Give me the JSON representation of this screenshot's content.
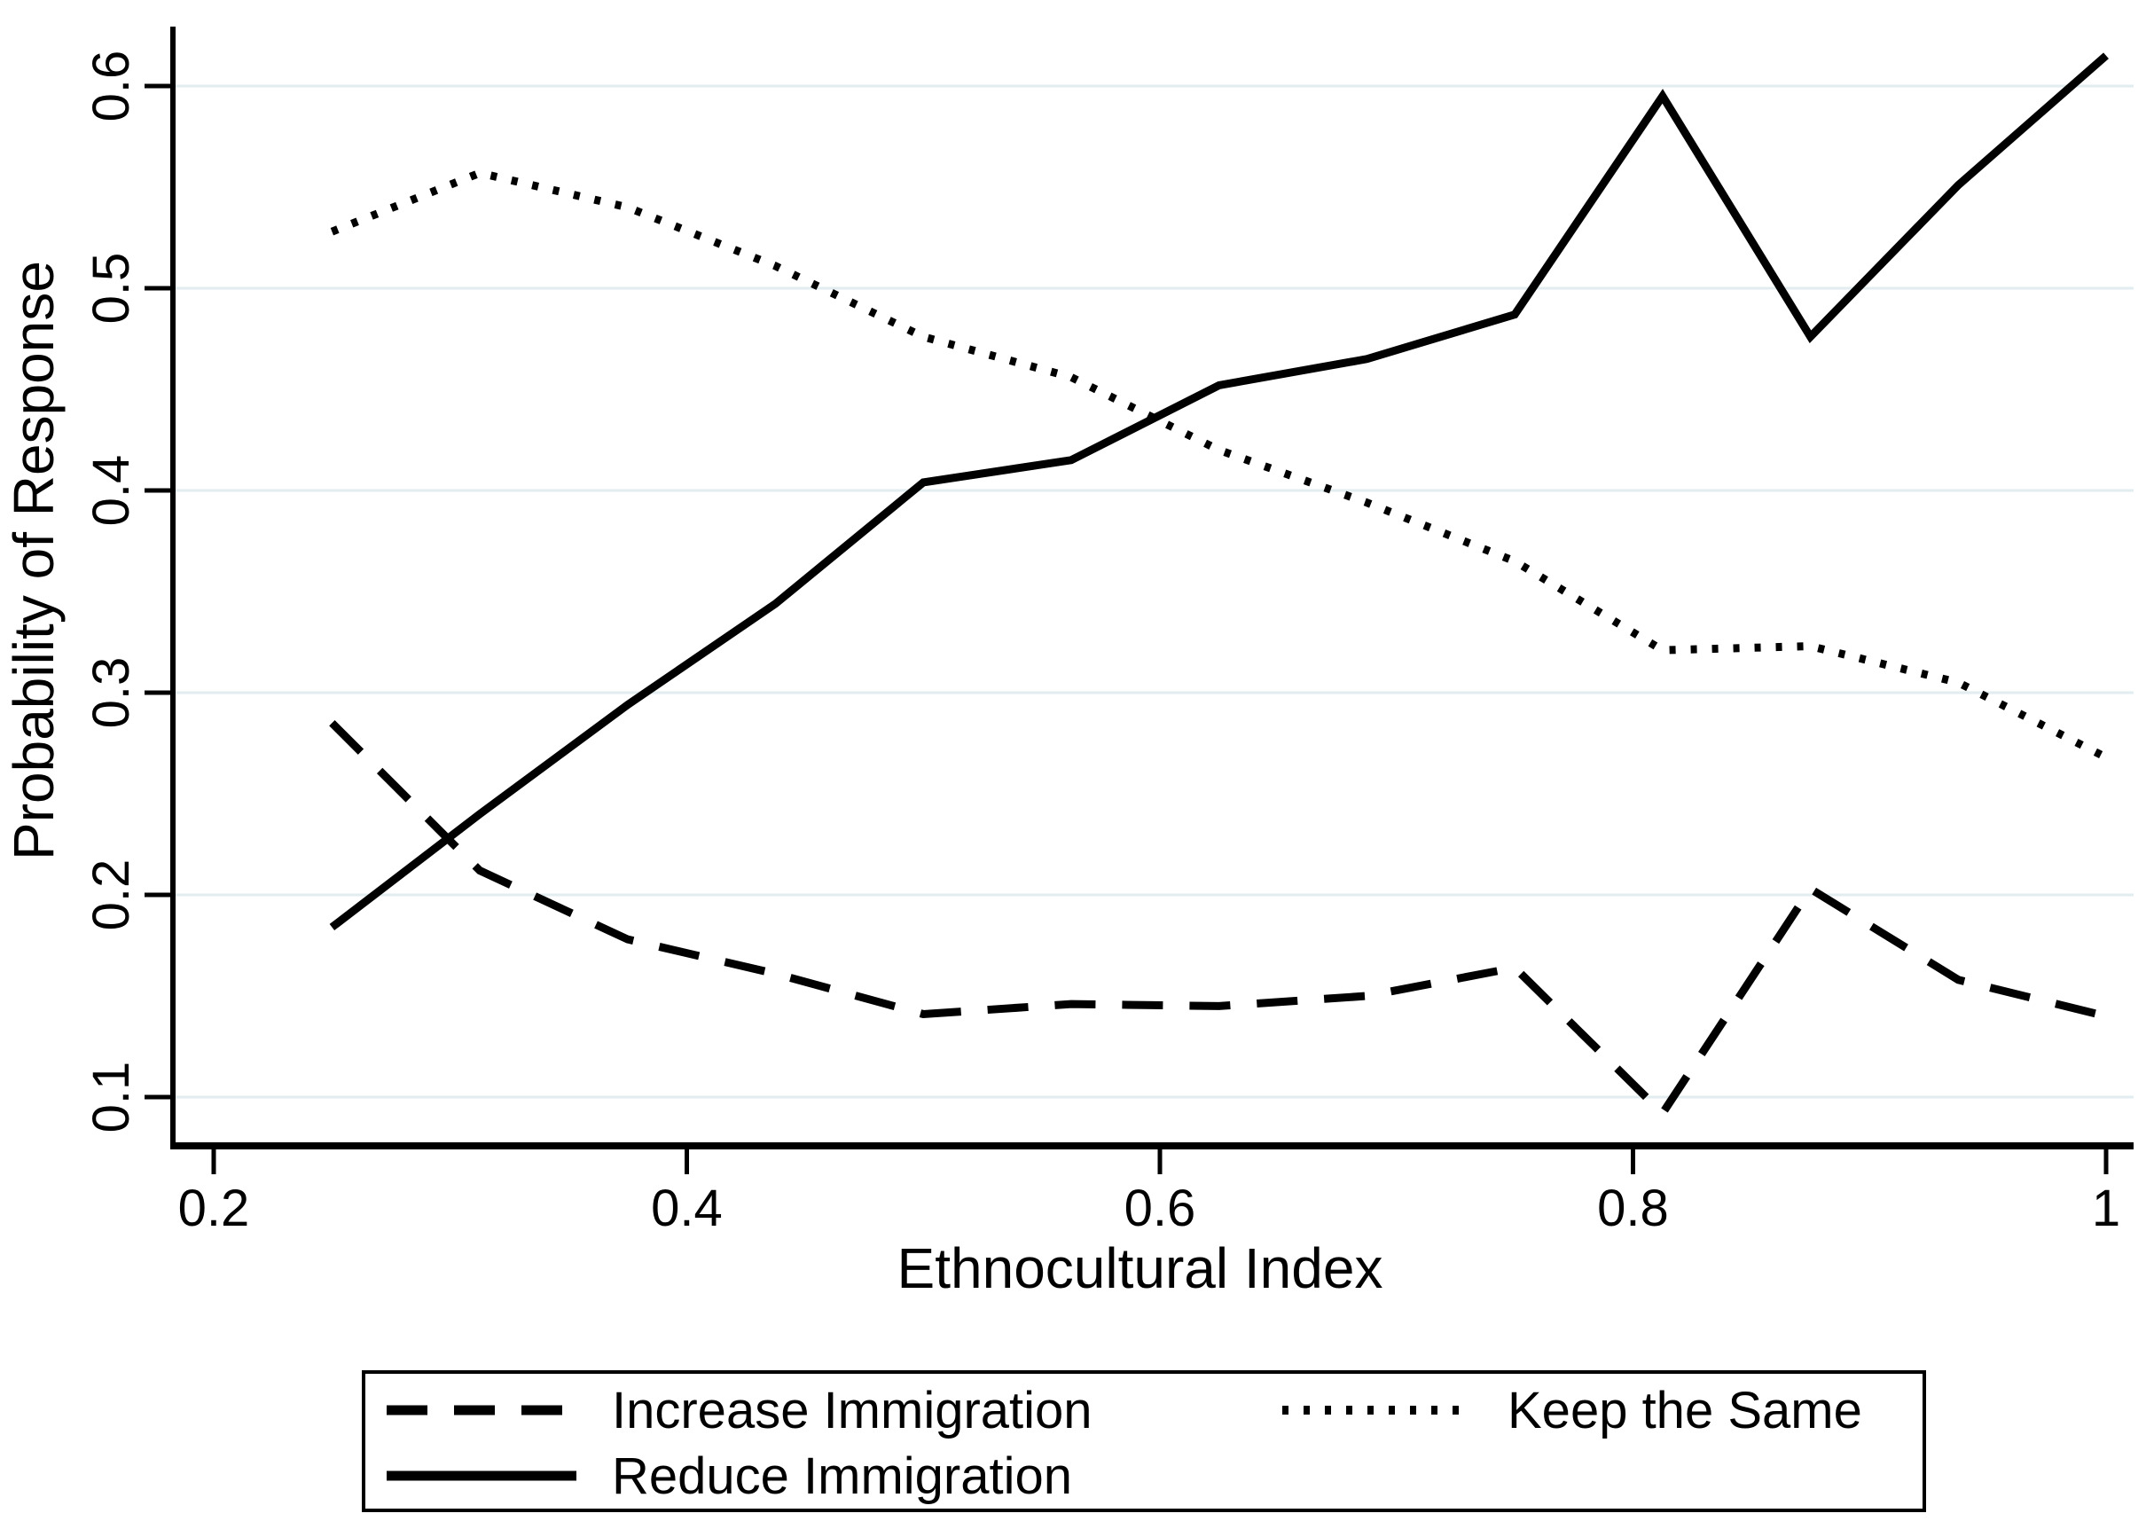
{
  "chart_data": {
    "type": "line",
    "title": "",
    "xlabel": "Ethnocultural Index",
    "ylabel": "Probability of Response",
    "xlim": [
      0.1827,
      1.0115
    ],
    "ylim": [
      0.077,
      0.629
    ],
    "x_ticks": [
      0.2,
      0.4,
      0.6,
      0.8,
      1.0
    ],
    "x_tick_labels": [
      "0.2",
      "0.4",
      "0.6",
      "0.8",
      "1"
    ],
    "y_ticks": [
      0.1,
      0.2,
      0.3,
      0.4,
      0.5,
      0.6
    ],
    "y_tick_labels": [
      "0.1",
      "0.2",
      "0.3",
      "0.4",
      "0.5",
      "0.6"
    ],
    "grid": "horizontal",
    "legend_position": "bottom",
    "x": [
      0.25,
      0.3125,
      0.375,
      0.4375,
      0.5,
      0.5625,
      0.625,
      0.6875,
      0.75,
      0.8125,
      0.875,
      0.9375,
      1.0
    ],
    "series": [
      {
        "name": "Increase Immigration",
        "style": "dashed",
        "values": [
          0.285,
          0.212,
          0.178,
          0.161,
          0.141,
          0.146,
          0.145,
          0.15,
          0.164,
          0.092,
          0.203,
          0.158,
          0.14
        ]
      },
      {
        "name": "Keep the Same",
        "style": "dotted",
        "values": [
          0.528,
          0.557,
          0.54,
          0.511,
          0.476,
          0.456,
          0.42,
          0.394,
          0.365,
          0.321,
          0.323,
          0.305,
          0.268
        ]
      },
      {
        "name": "Reduce Immigration",
        "style": "solid",
        "values": [
          0.184,
          0.24,
          0.294,
          0.344,
          0.404,
          0.415,
          0.452,
          0.465,
          0.487,
          0.595,
          0.476,
          0.551,
          0.615
        ]
      }
    ],
    "colors": {
      "line": "#000000",
      "grid": "#e2edf0",
      "background": "#ffffff",
      "axis": "#000000"
    }
  },
  "legend": {
    "items": [
      {
        "label": "Increase Immigration",
        "dash": "46 30"
      },
      {
        "label": "Keep the Same",
        "dash": "7 17"
      },
      {
        "label": "Reduce Immigration",
        "dash": "none"
      }
    ]
  }
}
